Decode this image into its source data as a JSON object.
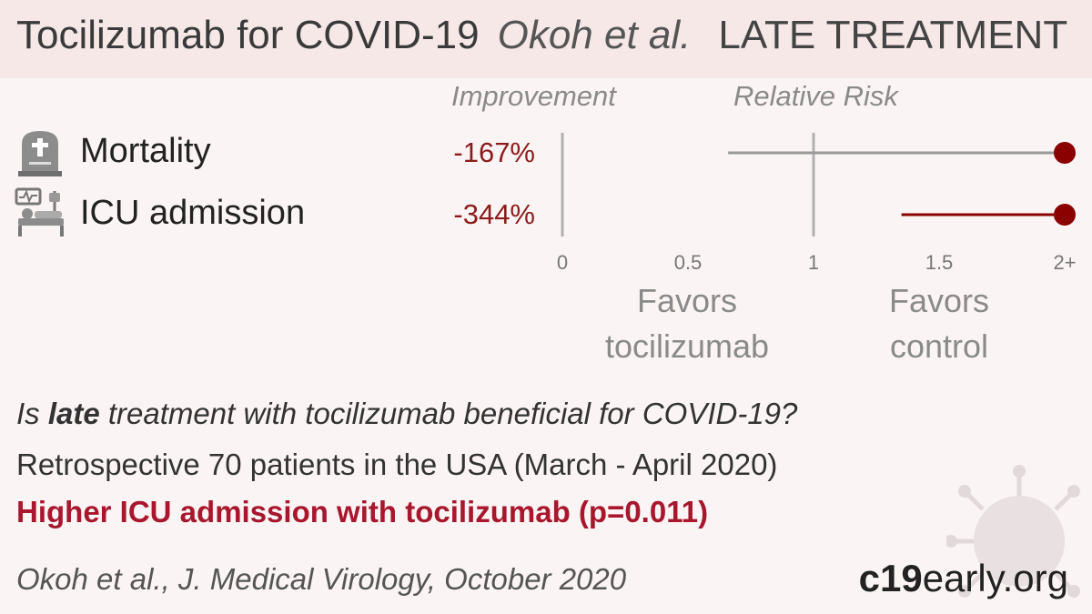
{
  "header": {
    "drug_title": "Tocilizumab for COVID-19",
    "author": "Okoh et al.",
    "stage": "LATE TREATMENT"
  },
  "columns": {
    "improvement": "Improvement",
    "relative_risk": "Relative Risk"
  },
  "outcomes": [
    {
      "label": "Mortality",
      "improvement": "-167%",
      "icon": "tombstone-icon"
    },
    {
      "label": "ICU admission",
      "improvement": "-344%",
      "icon": "hospital-bed-icon"
    }
  ],
  "chart_data": {
    "type": "forest",
    "x_ticks": [
      "0",
      "0.5",
      "1",
      "1.5",
      "2+"
    ],
    "xlim": [
      0,
      2
    ],
    "reference_line": 1,
    "rows": [
      {
        "name": "Mortality",
        "estimate": 2.0,
        "ci_low": 0.66,
        "ci_high": 2.0,
        "color": "#8b0000"
      },
      {
        "name": "ICU admission",
        "estimate": 2.0,
        "ci_low": 1.35,
        "ci_high": 2.0,
        "color": "#8b0000"
      }
    ],
    "colors": {
      "mortality_ci": "#999999",
      "icu_ci": "#8b0000"
    }
  },
  "favors": {
    "left": [
      "Favors",
      "tocilizumab"
    ],
    "right": [
      "Favors",
      "control"
    ]
  },
  "summary": {
    "question_prefix": "Is ",
    "question_emph": "late",
    "question_suffix": " treatment with tocilizumab beneficial for COVID-19?",
    "design": "Retrospective 70 patients in the USA (March - April 2020)",
    "result": "Higher ICU admission with tocilizumab (p=0.011)",
    "citation": "Okoh et al., J. Medical Virology, October 2020"
  },
  "brand": {
    "bold": "c19",
    "rest": "early.org"
  }
}
